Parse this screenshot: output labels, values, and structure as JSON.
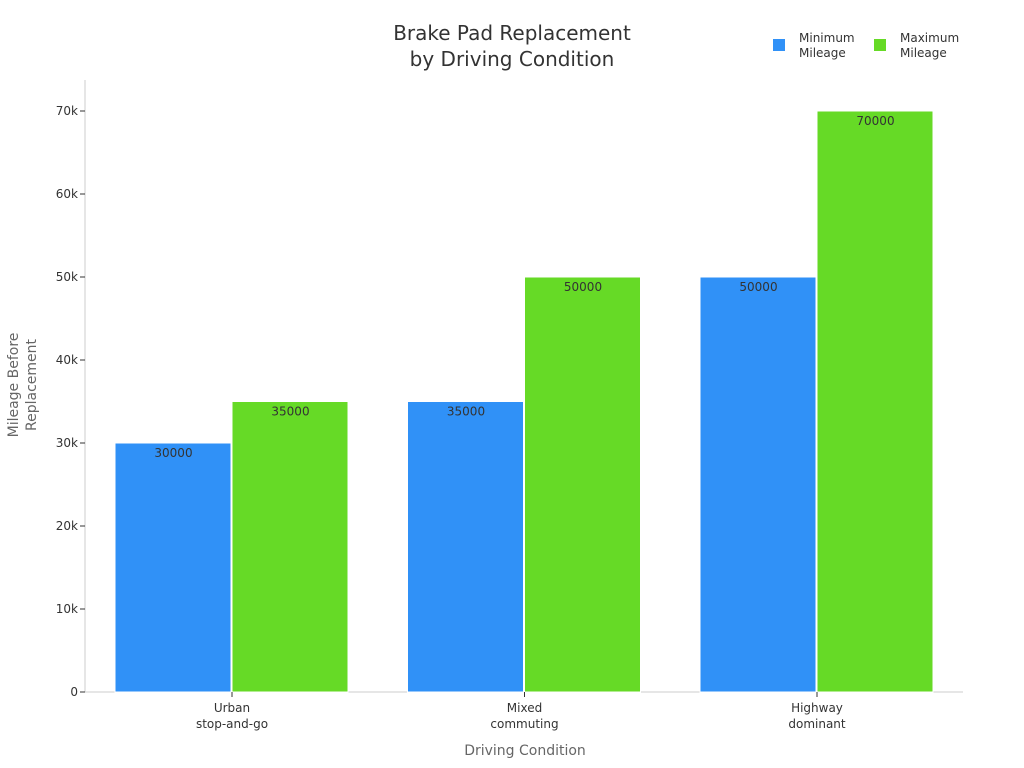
{
  "chart_data": {
    "type": "bar",
    "title": [
      "Brake Pad Replacement",
      "by Driving Condition"
    ],
    "xlabel": "Driving Condition",
    "ylabel": [
      "Mileage Before",
      "Replacement"
    ],
    "categories": [
      [
        "Urban",
        "stop-and-go"
      ],
      [
        "Mixed",
        "commuting"
      ],
      [
        "Highway",
        "dominant"
      ]
    ],
    "series": [
      {
        "name": [
          "Minimum",
          "Mileage"
        ],
        "color": "#3091f7",
        "values": [
          30000,
          35000,
          50000
        ]
      },
      {
        "name": [
          "Maximum",
          "Mileage"
        ],
        "color": "#66da26",
        "values": [
          35000,
          50000,
          70000
        ]
      }
    ],
    "ylim": [
      0,
      70000
    ],
    "yticks": [
      0,
      10000,
      20000,
      30000,
      40000,
      50000,
      60000,
      70000
    ],
    "ytick_labels": [
      "0",
      "10k",
      "20k",
      "30k",
      "40k",
      "50k",
      "60k",
      "70k"
    ],
    "grid": false,
    "legend_position": "top-right",
    "data_labels": true
  }
}
